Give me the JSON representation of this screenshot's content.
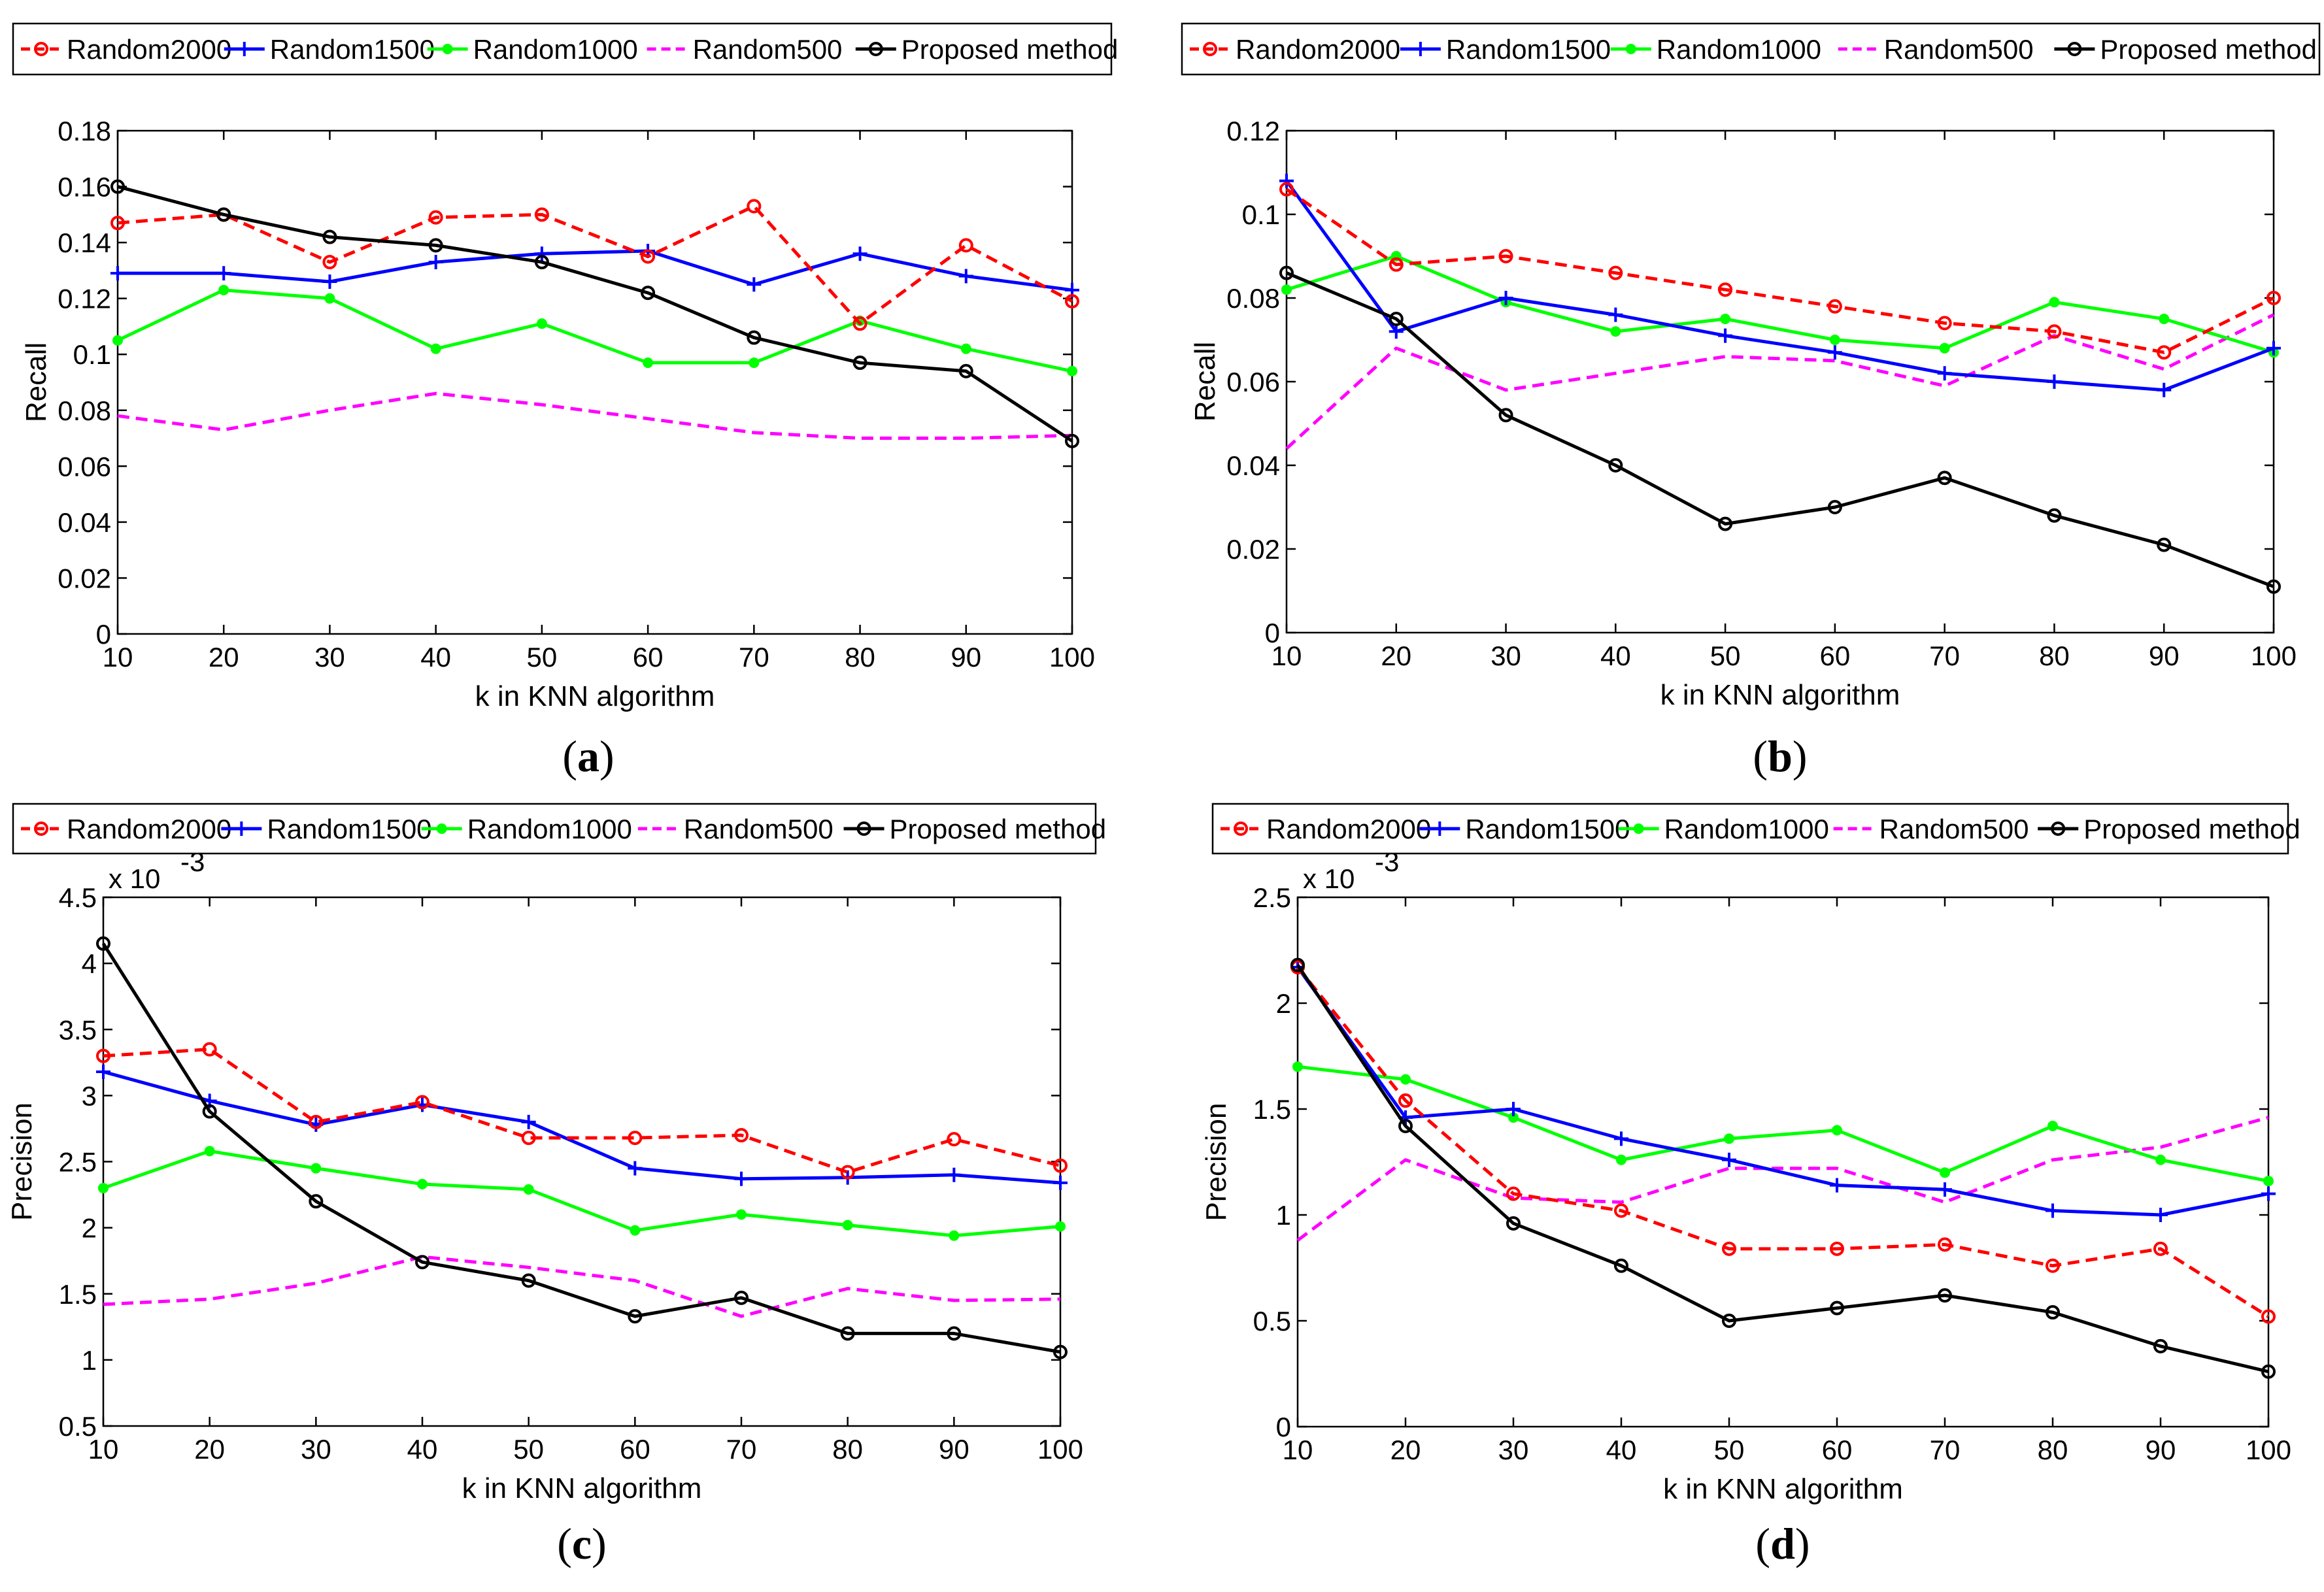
{
  "legend_labels": [
    "Random2000",
    "Random1500",
    "Random1000",
    "Random500",
    "Proposed method"
  ],
  "series_styles": [
    {
      "name": "Random2000",
      "color": "#ff0000",
      "dash": "dashed",
      "marker": "circle"
    },
    {
      "name": "Random1500",
      "color": "#0000ff",
      "dash": "solid",
      "marker": "plus"
    },
    {
      "name": "Random1000",
      "color": "#00ff00",
      "dash": "solid",
      "marker": "dot"
    },
    {
      "name": "Random500",
      "color": "#ff00ff",
      "dash": "dashed",
      "marker": "none"
    },
    {
      "name": "Proposed method",
      "color": "#000000",
      "dash": "solid",
      "marker": "circle"
    }
  ],
  "chart_data": [
    {
      "type": "line",
      "caption": "a",
      "xlabel": "k in KNN algorithm",
      "ylabel": "Recall",
      "x": [
        10,
        20,
        30,
        40,
        50,
        60,
        70,
        80,
        90,
        100
      ],
      "xticks": [
        "10",
        "20",
        "30",
        "40",
        "50",
        "60",
        "70",
        "80",
        "90",
        "100"
      ],
      "ylim": [
        0,
        0.18
      ],
      "yticks": [
        0,
        0.02,
        0.04,
        0.06,
        0.08,
        0.1,
        0.12,
        0.14,
        0.16,
        0.18
      ],
      "ytick_labels": [
        "0",
        "0.02",
        "0.04",
        "0.06",
        "0.08",
        "0.1",
        "0.12",
        "0.14",
        "0.16",
        "0.18"
      ],
      "exponent_label": null,
      "series": [
        {
          "name": "Random2000",
          "values": [
            0.147,
            0.15,
            0.133,
            0.149,
            0.15,
            0.135,
            0.153,
            0.111,
            0.139,
            0.119
          ]
        },
        {
          "name": "Random1500",
          "values": [
            0.129,
            0.129,
            0.126,
            0.133,
            0.136,
            0.137,
            0.125,
            0.136,
            0.128,
            0.123
          ]
        },
        {
          "name": "Random1000",
          "values": [
            0.105,
            0.123,
            0.12,
            0.102,
            0.111,
            0.097,
            0.097,
            0.112,
            0.102,
            0.094
          ]
        },
        {
          "name": "Random500",
          "values": [
            0.078,
            0.073,
            0.08,
            0.086,
            0.082,
            0.077,
            0.072,
            0.07,
            0.07,
            0.071
          ]
        },
        {
          "name": "Proposed method",
          "values": [
            0.16,
            0.15,
            0.142,
            0.139,
            0.133,
            0.122,
            0.106,
            0.097,
            0.094,
            0.069
          ]
        }
      ]
    },
    {
      "type": "line",
      "caption": "b",
      "xlabel": "k in KNN algorithm",
      "ylabel": "Recall",
      "x": [
        10,
        20,
        30,
        40,
        50,
        60,
        70,
        80,
        90,
        100
      ],
      "xticks": [
        "10",
        "20",
        "30",
        "40",
        "50",
        "60",
        "70",
        "80",
        "90",
        "100"
      ],
      "ylim": [
        0,
        0.12
      ],
      "yticks": [
        0,
        0.02,
        0.04,
        0.06,
        0.08,
        0.1,
        0.12
      ],
      "ytick_labels": [
        "0",
        "0.02",
        "0.04",
        "0.06",
        "0.08",
        "0.1",
        "0.12"
      ],
      "exponent_label": null,
      "series": [
        {
          "name": "Random2000",
          "values": [
            0.106,
            0.088,
            0.09,
            0.086,
            0.082,
            0.078,
            0.074,
            0.072,
            0.067,
            0.08
          ]
        },
        {
          "name": "Random1500",
          "values": [
            0.108,
            0.072,
            0.08,
            0.076,
            0.071,
            0.067,
            0.062,
            0.06,
            0.058,
            0.068
          ]
        },
        {
          "name": "Random1000",
          "values": [
            0.082,
            0.09,
            0.079,
            0.072,
            0.075,
            0.07,
            0.068,
            0.079,
            0.075,
            0.067
          ]
        },
        {
          "name": "Random500",
          "values": [
            0.044,
            0.068,
            0.058,
            0.062,
            0.066,
            0.065,
            0.059,
            0.071,
            0.063,
            0.076
          ]
        },
        {
          "name": "Proposed method",
          "values": [
            0.086,
            0.075,
            0.052,
            0.04,
            0.026,
            0.03,
            0.037,
            0.028,
            0.021,
            0.011
          ]
        }
      ]
    },
    {
      "type": "line",
      "caption": "c",
      "xlabel": "k in KNN algorithm",
      "ylabel": "Precision",
      "x": [
        10,
        20,
        30,
        40,
        50,
        60,
        70,
        80,
        90,
        100
      ],
      "xticks": [
        "10",
        "20",
        "30",
        "40",
        "50",
        "60",
        "70",
        "80",
        "90",
        "100"
      ],
      "ylim": [
        0.5,
        4.5
      ],
      "yticks": [
        0.5,
        1,
        1.5,
        2,
        2.5,
        3,
        3.5,
        4,
        4.5
      ],
      "ytick_labels": [
        "0.5",
        "1",
        "1.5",
        "2",
        "2.5",
        "3",
        "3.5",
        "4",
        "4.5"
      ],
      "exponent_label": {
        "base": "x 10",
        "power": "-3"
      },
      "series": [
        {
          "name": "Random2000",
          "values": [
            3.3,
            3.35,
            2.8,
            2.95,
            2.68,
            2.68,
            2.7,
            2.42,
            2.67,
            2.47
          ]
        },
        {
          "name": "Random1500",
          "values": [
            3.18,
            2.96,
            2.78,
            2.93,
            2.8,
            2.45,
            2.37,
            2.38,
            2.4,
            2.34
          ]
        },
        {
          "name": "Random1000",
          "values": [
            2.3,
            2.58,
            2.45,
            2.33,
            2.29,
            1.98,
            2.1,
            2.02,
            1.94,
            2.01
          ]
        },
        {
          "name": "Random500",
          "values": [
            1.42,
            1.46,
            1.58,
            1.78,
            1.7,
            1.6,
            1.33,
            1.54,
            1.45,
            1.46
          ]
        },
        {
          "name": "Proposed method",
          "values": [
            4.15,
            2.88,
            2.2,
            1.74,
            1.6,
            1.33,
            1.47,
            1.2,
            1.2,
            1.06
          ]
        }
      ]
    },
    {
      "type": "line",
      "caption": "d",
      "xlabel": "k in KNN algorithm",
      "ylabel": "Precision",
      "x": [
        10,
        20,
        30,
        40,
        50,
        60,
        70,
        80,
        90,
        100
      ],
      "xticks": [
        "10",
        "20",
        "30",
        "40",
        "50",
        "60",
        "70",
        "80",
        "90",
        "100"
      ],
      "ylim": [
        0,
        2.5
      ],
      "yticks": [
        0,
        0.5,
        1,
        1.5,
        2,
        2.5
      ],
      "ytick_labels": [
        "0",
        "0.5",
        "1",
        "1.5",
        "2",
        "2.5"
      ],
      "exponent_label": {
        "base": "x 10",
        "power": "-3"
      },
      "series": [
        {
          "name": "Random2000",
          "values": [
            2.17,
            1.54,
            1.1,
            1.02,
            0.84,
            0.84,
            0.86,
            0.76,
            0.84,
            0.52
          ]
        },
        {
          "name": "Random1500",
          "values": [
            2.17,
            1.46,
            1.5,
            1.36,
            1.26,
            1.14,
            1.12,
            1.02,
            1.0,
            1.1
          ]
        },
        {
          "name": "Random1000",
          "values": [
            1.7,
            1.64,
            1.46,
            1.26,
            1.36,
            1.4,
            1.2,
            1.42,
            1.26,
            1.16
          ]
        },
        {
          "name": "Random500",
          "values": [
            0.88,
            1.26,
            1.08,
            1.06,
            1.22,
            1.22,
            1.06,
            1.26,
            1.32,
            1.46
          ]
        },
        {
          "name": "Proposed method",
          "values": [
            2.18,
            1.42,
            0.96,
            0.76,
            0.5,
            0.56,
            0.62,
            0.54,
            0.38,
            0.26
          ]
        }
      ]
    }
  ]
}
